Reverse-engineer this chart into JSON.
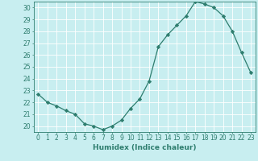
{
  "x": [
    0,
    1,
    2,
    3,
    4,
    5,
    6,
    7,
    8,
    9,
    10,
    11,
    12,
    13,
    14,
    15,
    16,
    17,
    18,
    19,
    20,
    21,
    22,
    23
  ],
  "y": [
    22.7,
    22.0,
    21.7,
    21.3,
    21.0,
    20.2,
    20.0,
    19.7,
    20.0,
    20.5,
    21.5,
    22.3,
    23.8,
    26.7,
    27.7,
    28.5,
    29.3,
    30.5,
    30.3,
    30.0,
    29.3,
    28.0,
    26.2,
    24.5
  ],
  "line_color": "#2e7d6e",
  "marker": "D",
  "marker_size": 2.2,
  "bg_color": "#c8eef0",
  "grid_color": "#ffffff",
  "xlabel": "Humidex (Indice chaleur)",
  "xlim": [
    -0.5,
    23.5
  ],
  "ylim": [
    19.5,
    30.5
  ],
  "yticks": [
    20,
    21,
    22,
    23,
    24,
    25,
    26,
    27,
    28,
    29,
    30
  ],
  "xticks": [
    0,
    1,
    2,
    3,
    4,
    5,
    6,
    7,
    8,
    9,
    10,
    11,
    12,
    13,
    14,
    15,
    16,
    17,
    18,
    19,
    20,
    21,
    22,
    23
  ],
  "tick_color": "#2e7d6e",
  "label_fontsize": 6.5,
  "tick_fontsize": 5.5
}
